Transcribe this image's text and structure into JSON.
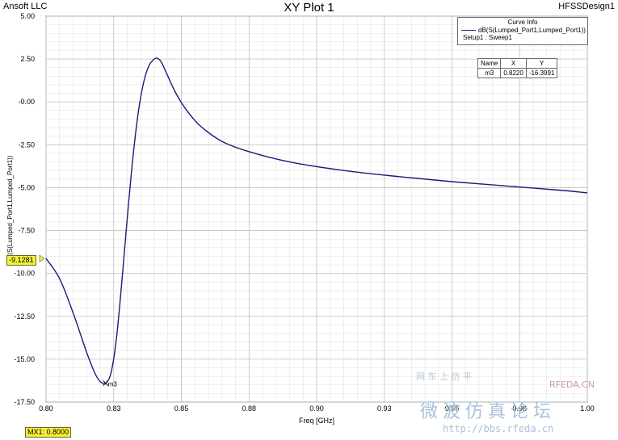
{
  "header": {
    "vendor": "Ansoft LLC",
    "design": "HFSSDesign1"
  },
  "chart_data": {
    "type": "line",
    "title": "XY Plot 1",
    "xlabel": "Freq [GHz]",
    "ylabel": "dB(S(Lumped_Port1,Lumped_Port1))",
    "xlim": [
      0.8,
      1.0
    ],
    "ylim": [
      -17.5,
      5.0
    ],
    "x_ticks": [
      "0.80",
      "0.83",
      "0.85",
      "0.88",
      "0.90",
      "0.93",
      "0.95",
      "0.98",
      "1.00"
    ],
    "x_tick_values": [
      0.8,
      0.825,
      0.85,
      0.875,
      0.9,
      0.925,
      0.95,
      0.975,
      1.0
    ],
    "y_ticks": [
      "5.00",
      "2.50",
      "-0.00",
      "-2.50",
      "-5.00",
      "-7.50",
      "-10.00",
      "-12.50",
      "-15.00",
      "-17.50"
    ],
    "y_tick_values": [
      5.0,
      2.5,
      0.0,
      -2.5,
      -5.0,
      -7.5,
      -10.0,
      -12.5,
      -15.0,
      -17.5
    ],
    "grid": true,
    "series": [
      {
        "name": "dB(S(Lumped_Port1,Lumped_Port1))",
        "color": "#1c1c7a",
        "x": [
          0.8,
          0.805,
          0.81,
          0.815,
          0.818,
          0.82,
          0.822,
          0.824,
          0.826,
          0.828,
          0.83,
          0.832,
          0.834,
          0.836,
          0.838,
          0.84,
          0.841,
          0.842,
          0.843,
          0.845,
          0.848,
          0.852,
          0.857,
          0.865,
          0.875,
          0.89,
          0.91,
          0.93,
          0.95,
          0.97,
          0.99,
          1.0
        ],
        "y": [
          -9.13,
          -10.3,
          -12.3,
          -14.6,
          -15.8,
          -16.3,
          -16.4,
          -15.8,
          -13.8,
          -10.5,
          -6.8,
          -3.4,
          -0.7,
          1.1,
          2.1,
          2.5,
          2.55,
          2.45,
          2.2,
          1.5,
          0.5,
          -0.5,
          -1.4,
          -2.3,
          -2.9,
          -3.5,
          -4.0,
          -4.35,
          -4.65,
          -4.9,
          -5.15,
          -5.3
        ]
      }
    ],
    "marker": {
      "name": "m3",
      "x": 0.822,
      "y": -16.3991
    },
    "marker_label": "m3"
  },
  "legend": {
    "title": "Curve Info",
    "entry": "dB(S(Lumped_Port1,Lumped_Port1))",
    "sub": "Setup1 : Sweep1",
    "placement": "top-right"
  },
  "marker_table": {
    "headers": [
      "Name",
      "X",
      "Y"
    ],
    "row": [
      "m3",
      "0.8220",
      "-16.3991"
    ]
  },
  "y_tag": "-9.1281",
  "x_tag": "MX1: 0.8000",
  "watermark": {
    "line1": "网 东 上 仿 平",
    "line2": "RFEDA.CN",
    "line3": "微波仿真论坛",
    "line4": "http://bbs.rfeda.cn"
  }
}
